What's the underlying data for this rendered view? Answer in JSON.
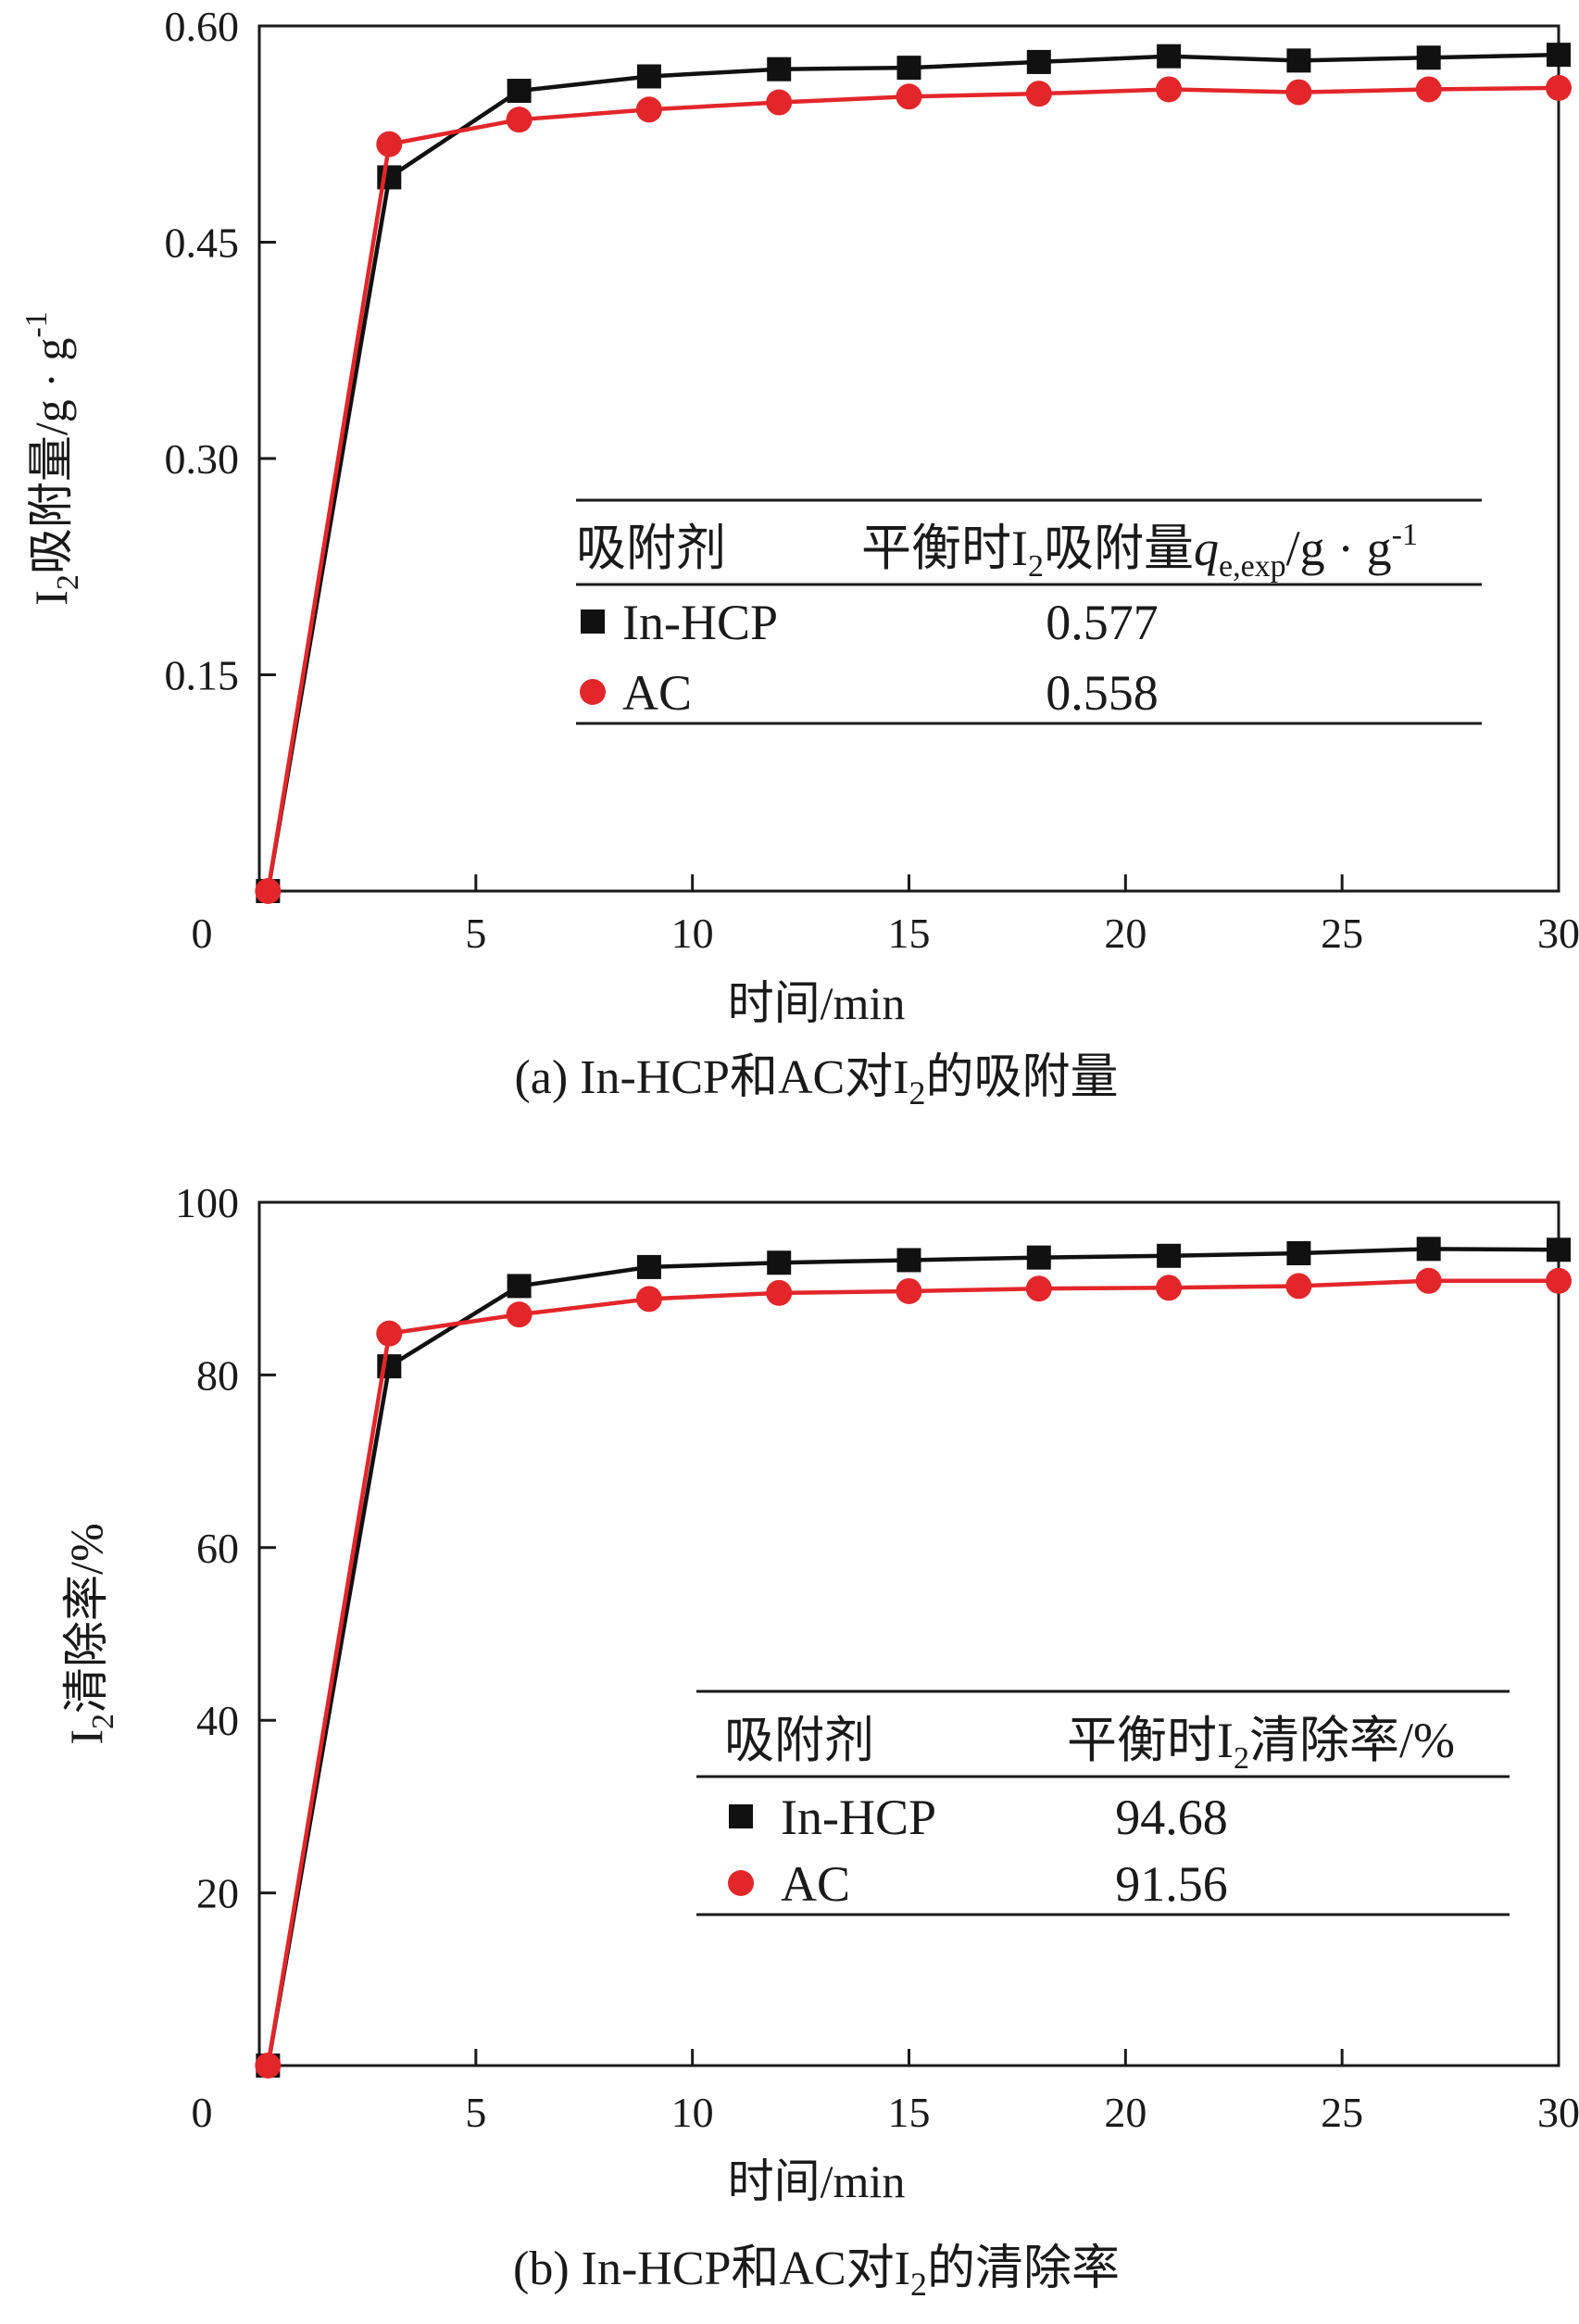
{
  "colors": {
    "series1": "#111111",
    "series2": "#e3262a",
    "axis": "#1a1a1a"
  },
  "chart_data": [
    {
      "type": "line",
      "panel": "a",
      "caption": {
        "prefix": "(a) In-HCP和AC对I",
        "sub": "2",
        "suffix": "的吸附量"
      },
      "ylabel": {
        "prefix": "I",
        "sub": "2",
        "text": "吸附量/g · g",
        "sup": "-1"
      },
      "xlabel": "时间/min",
      "xlim": [
        0,
        30
      ],
      "ylim": [
        0,
        0.6
      ],
      "x_ticks": [
        "0",
        "5",
        "10",
        "15",
        "20",
        "25",
        "30"
      ],
      "y_ticks": [
        "0.15",
        "0.30",
        "0.45",
        "0.60"
      ],
      "origin_label": "0",
      "series": [
        {
          "name": "In-HCP",
          "marker": "square",
          "x": [
            0.2,
            3,
            6,
            9,
            12,
            15,
            18,
            21,
            24,
            27,
            30
          ],
          "y": [
            0.0,
            0.495,
            0.555,
            0.565,
            0.57,
            0.571,
            0.575,
            0.579,
            0.576,
            0.578,
            0.58
          ]
        },
        {
          "name": "AC",
          "marker": "circle",
          "x": [
            0.2,
            3,
            6,
            9,
            12,
            15,
            18,
            21,
            24,
            27,
            30
          ],
          "y": [
            0.0,
            0.518,
            0.535,
            0.542,
            0.547,
            0.551,
            0.553,
            0.556,
            0.554,
            0.556,
            0.557
          ]
        }
      ],
      "legend_table": {
        "header_left": "吸附剂",
        "header_right": {
          "prefix": "平衡时I",
          "sub": "2",
          "mid": "吸附量",
          "q": "q",
          "qsub": "e,exp",
          "suffix": "/g · g",
          "sup": "-1"
        },
        "rows": [
          {
            "name": "In-HCP",
            "value": "0.577"
          },
          {
            "name": "AC",
            "value": "0.558"
          }
        ]
      }
    },
    {
      "type": "line",
      "panel": "b",
      "caption": {
        "prefix": "(b) In-HCP和AC对I",
        "sub": "2",
        "suffix": "的清除率"
      },
      "ylabel": {
        "prefix": "I",
        "sub": "2",
        "text": "清除率/%"
      },
      "xlabel": "时间/min",
      "xlim": [
        0,
        30
      ],
      "ylim": [
        0,
        100
      ],
      "x_ticks": [
        "0",
        "5",
        "10",
        "15",
        "20",
        "25",
        "30"
      ],
      "y_ticks": [
        "20",
        "40",
        "60",
        "80",
        "100"
      ],
      "origin_label": "0",
      "series": [
        {
          "name": "In-HCP",
          "marker": "square",
          "x": [
            0.2,
            3,
            6,
            9,
            12,
            15,
            18,
            21,
            24,
            27,
            30
          ],
          "y": [
            0.0,
            81.0,
            90.3,
            92.5,
            93.0,
            93.3,
            93.6,
            93.8,
            94.1,
            94.6,
            94.5
          ]
        },
        {
          "name": "AC",
          "marker": "circle",
          "x": [
            0.2,
            3,
            6,
            9,
            12,
            15,
            18,
            21,
            24,
            27,
            30
          ],
          "y": [
            0.0,
            84.8,
            87.0,
            88.8,
            89.5,
            89.7,
            90.0,
            90.1,
            90.3,
            90.9,
            90.9
          ]
        }
      ],
      "legend_table": {
        "header_left": "吸附剂",
        "header_right": {
          "prefix": "平衡时I",
          "sub": "2",
          "mid": "清除率/%"
        },
        "rows": [
          {
            "name": "In-HCP",
            "value": "94.68"
          },
          {
            "name": "AC",
            "value": "91.56"
          }
        ]
      }
    }
  ]
}
